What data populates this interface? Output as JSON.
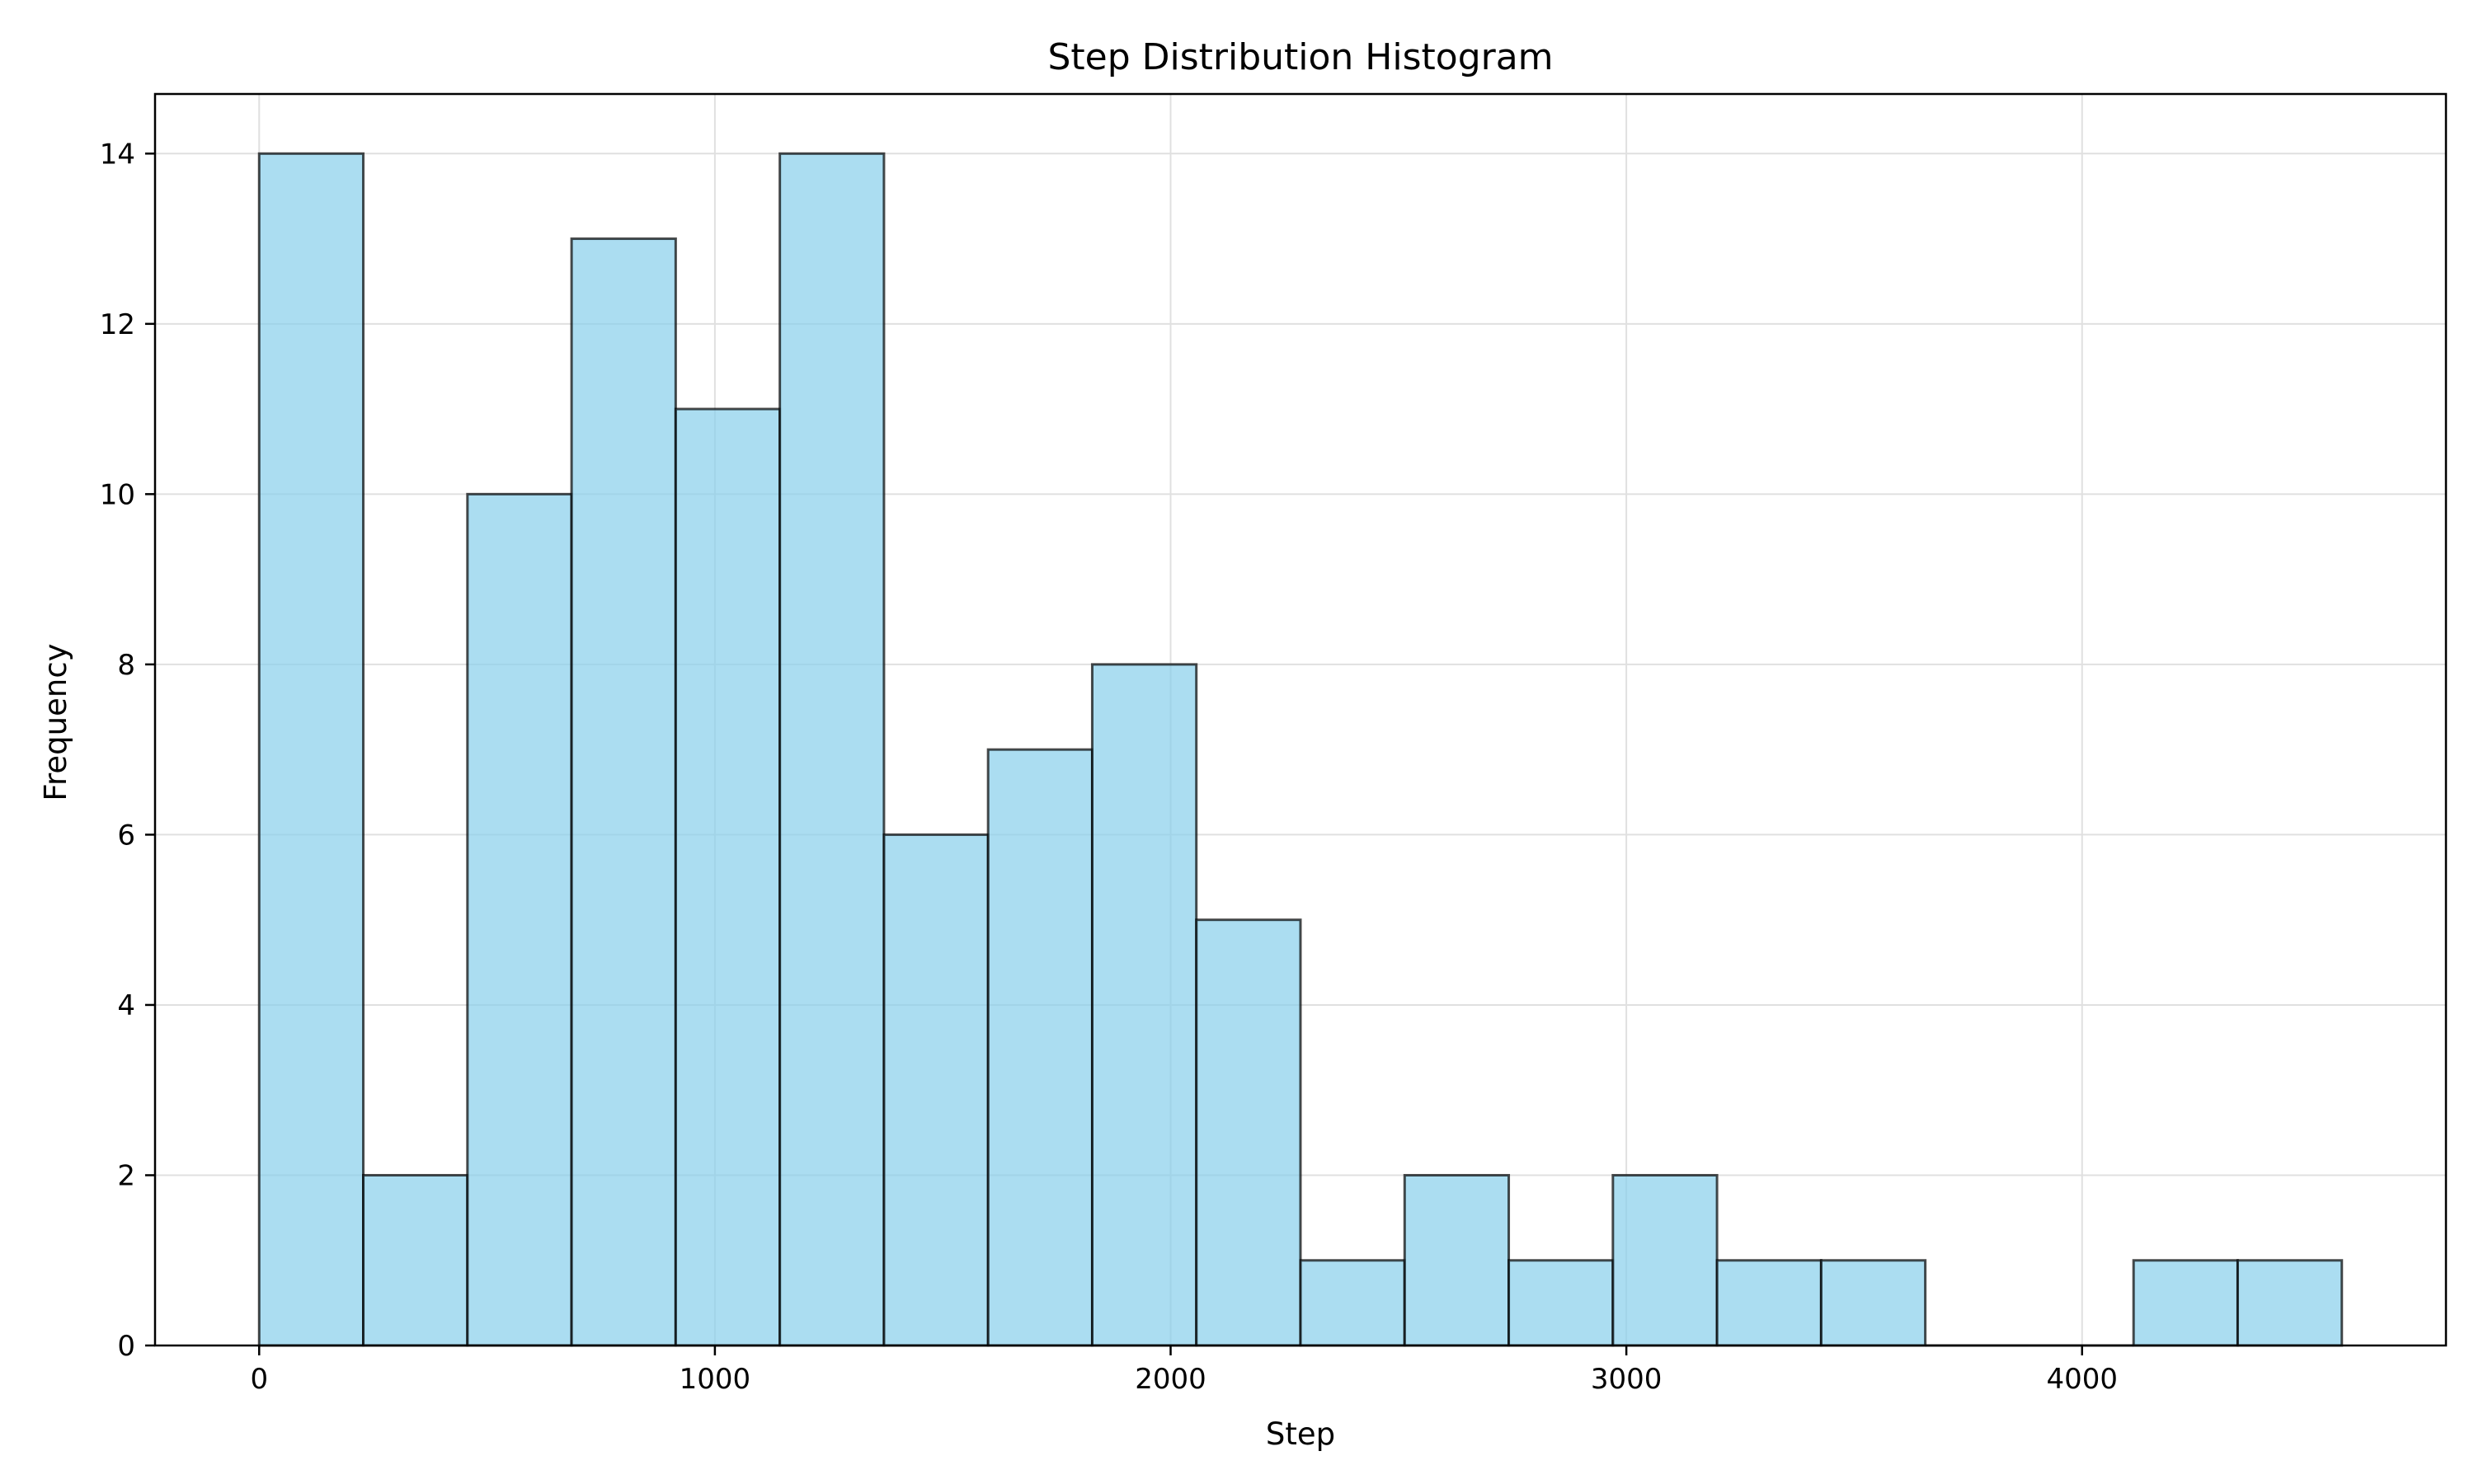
{
  "chart_data": {
    "type": "bar",
    "title": "Step Distribution Histogram",
    "xlabel": "Step",
    "ylabel": "Frequency",
    "bin_width": 228.5,
    "bin_start": 0,
    "bin_edges": [
      0,
      228.5,
      457,
      685.5,
      914,
      1142.5,
      1371,
      1599.5,
      1828,
      2056.5,
      2285,
      2513.5,
      2742,
      2970.5,
      3199,
      3427.5,
      3656,
      3884.5,
      4113,
      4341.5,
      4570
    ],
    "values": [
      14,
      2,
      10,
      13,
      11,
      14,
      6,
      7,
      8,
      5,
      1,
      2,
      1,
      2,
      1,
      1,
      0,
      0,
      1,
      1
    ],
    "xlim": [
      -228.5,
      4798.5
    ],
    "ylim": [
      0,
      14.7
    ],
    "xticks": [
      0,
      1000,
      2000,
      3000,
      4000
    ],
    "xtick_labels": [
      "0",
      "1000",
      "2000",
      "3000",
      "4000"
    ],
    "yticks": [
      0,
      2,
      4,
      6,
      8,
      10,
      12,
      14
    ],
    "ytick_labels": [
      "0",
      "2",
      "4",
      "6",
      "8",
      "10",
      "12",
      "14"
    ],
    "grid": true,
    "bar_color": "#87CEEB",
    "bar_edge_color": "#000000",
    "grid_color": "#e0e0e0"
  }
}
